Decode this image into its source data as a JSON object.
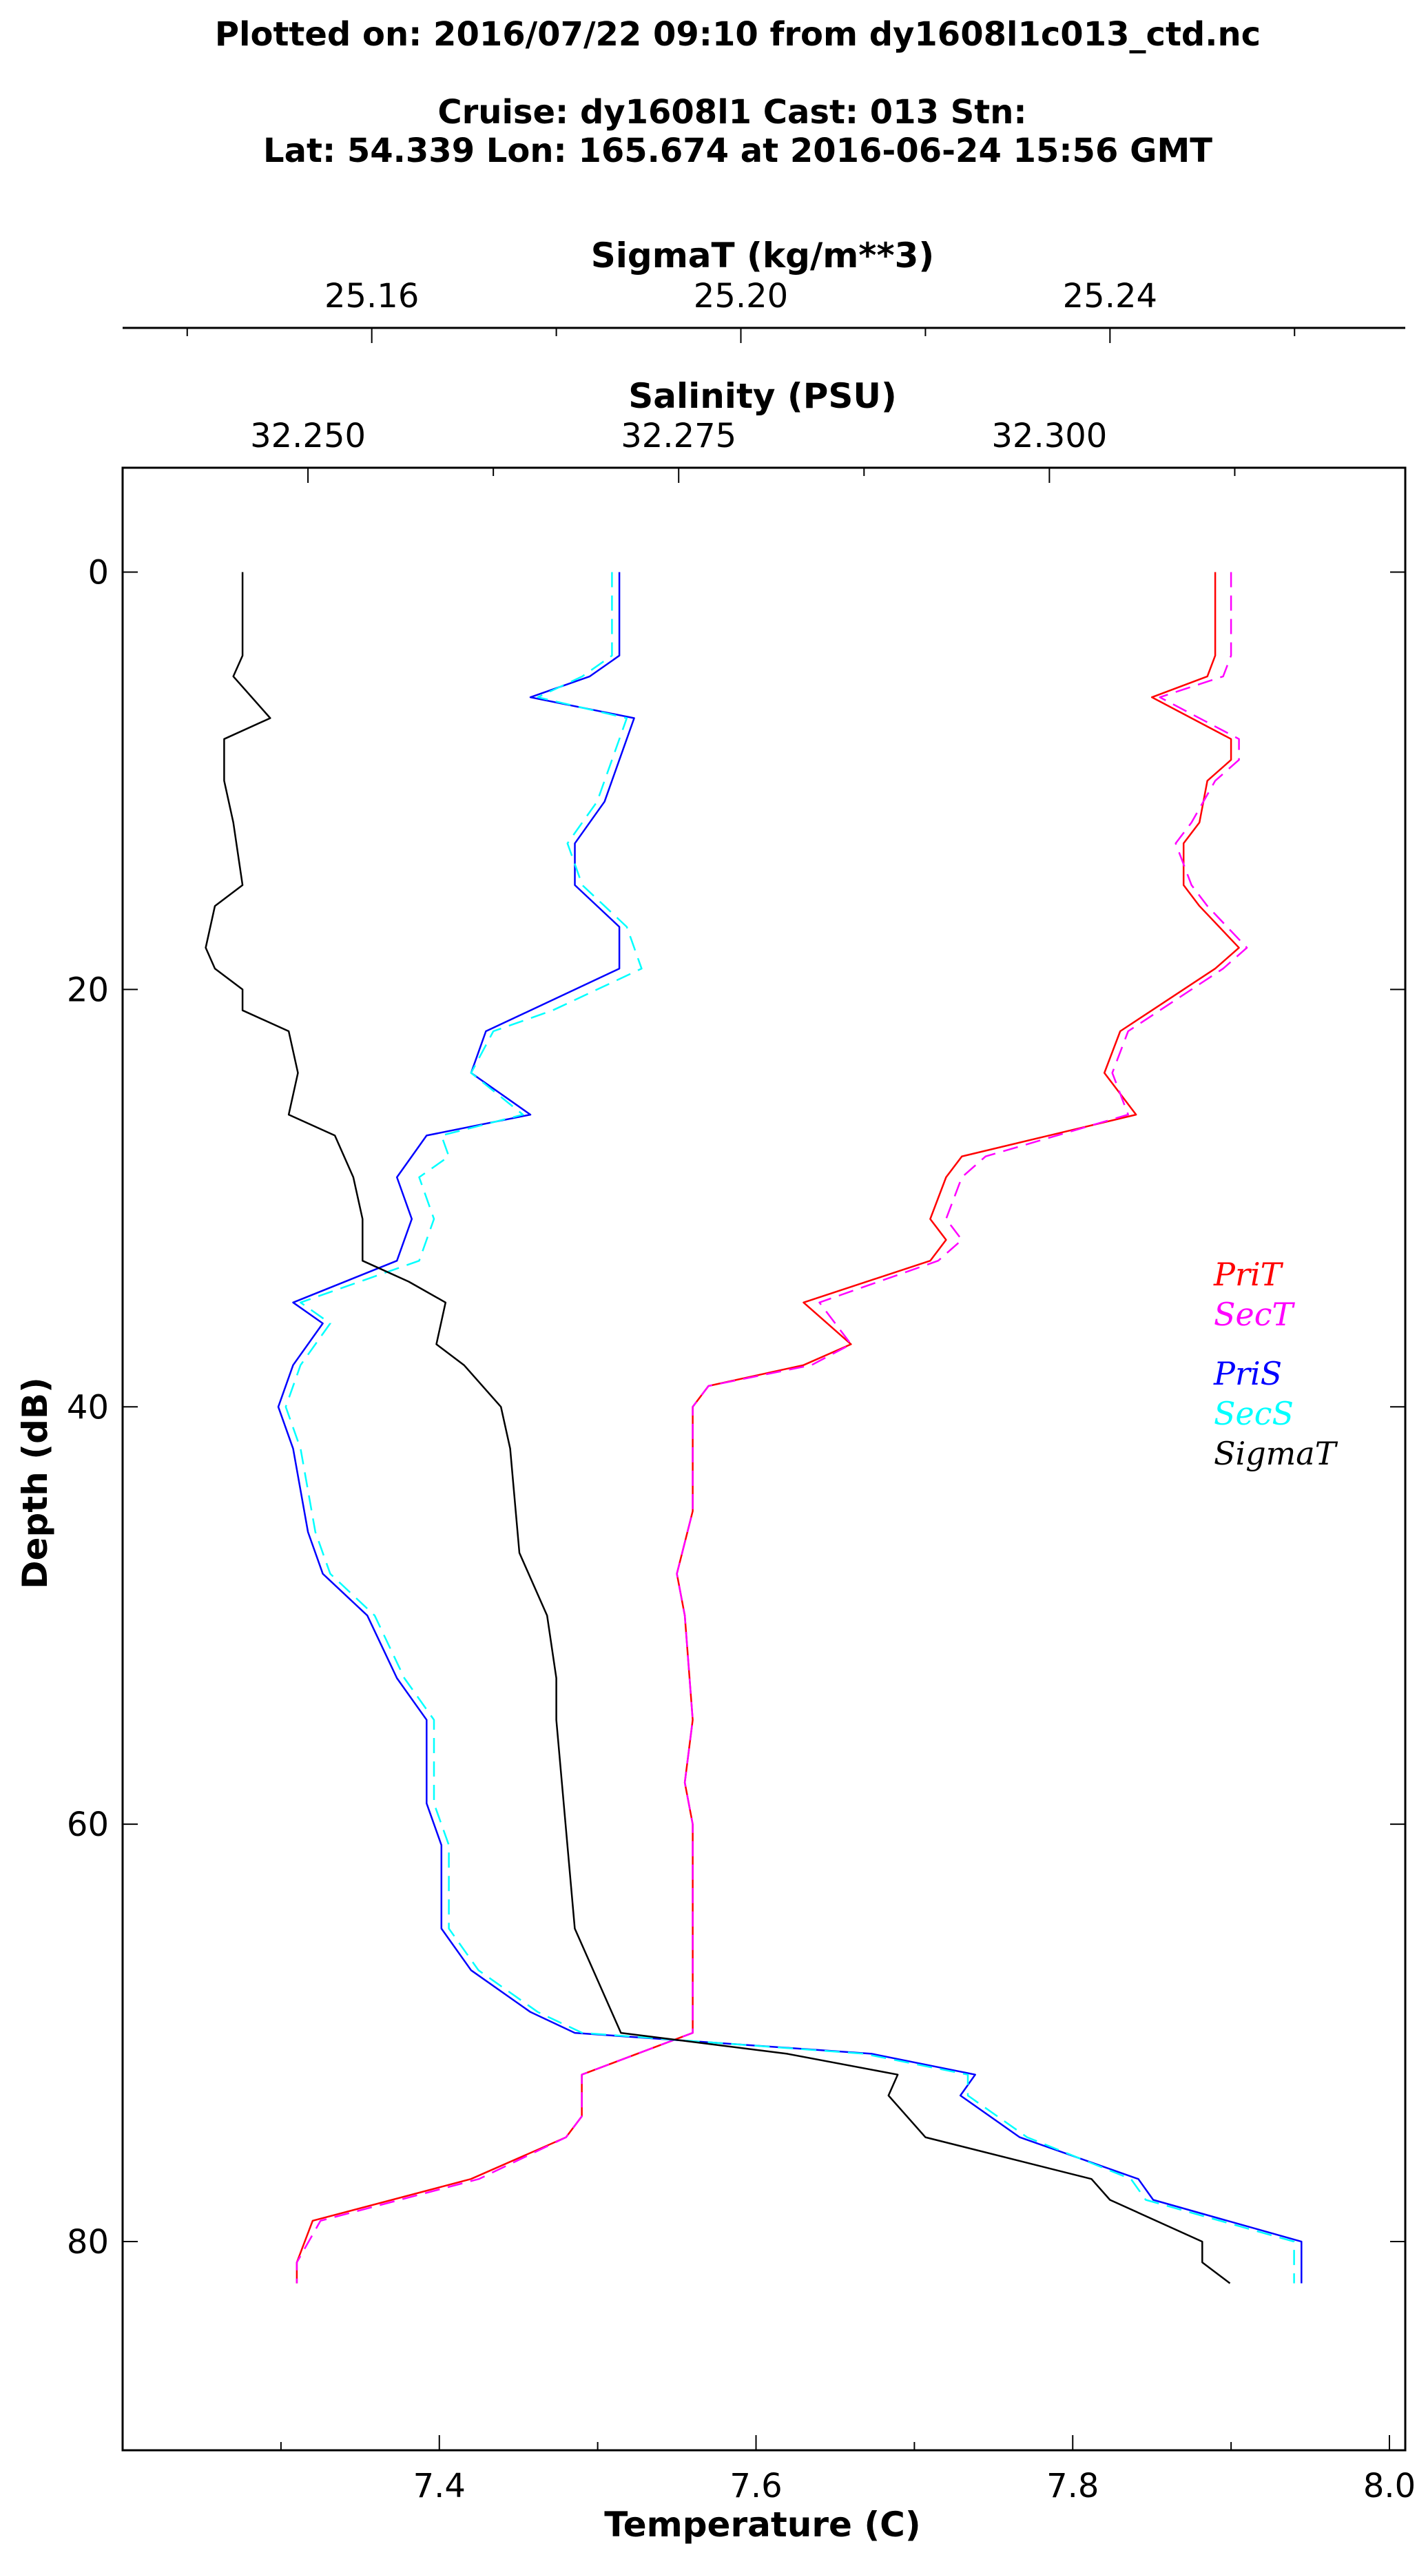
{
  "titles": {
    "line1": "Plotted on: 2016/07/22 09:10 from dy1608l1c013_ctd.nc",
    "line2": "Cruise: dy1608l1 Cast: 013  Stn:",
    "line3": "Lat: 54.339  Lon: 165.674 at 2016-06-24 15:56 GMT"
  },
  "chart_data": {
    "type": "line",
    "axes": {
      "sigmat": {
        "label": "SigmaT (kg/m**3)",
        "range": [
          25.133,
          25.272
        ],
        "ticks": [
          "25.16",
          "25.20",
          "25.24"
        ],
        "tick_values": [
          25.16,
          25.2,
          25.24
        ]
      },
      "salinity": {
        "label": "Salinity (PSU)",
        "range": [
          32.2375,
          32.324
        ],
        "ticks": [
          "32.250",
          "32.275",
          "32.300"
        ],
        "tick_values": [
          32.25,
          32.275,
          32.3
        ]
      },
      "temperature": {
        "label": "Temperature (C)",
        "range": [
          7.2,
          8.01
        ],
        "ticks": [
          "7.4",
          "7.6",
          "7.8",
          "8.0"
        ],
        "tick_values": [
          7.4,
          7.6,
          7.8,
          8.0
        ]
      },
      "depth": {
        "label": "Depth (dB)",
        "range": [
          -5,
          90
        ],
        "ticks": [
          "0",
          "20",
          "40",
          "60",
          "80"
        ],
        "tick_values": [
          0,
          20,
          40,
          60,
          80
        ],
        "inverted": true
      }
    },
    "legend": {
      "placement": "right",
      "temperature_entries": [
        "PriT",
        "SecT"
      ],
      "other_entries": [
        "PriS",
        "SecS",
        "SigmaT"
      ]
    },
    "colors": {
      "PriT": "#ff0000",
      "SecT": "#ff00ff",
      "PriS": "#0000ff",
      "SecS": "#00ffff",
      "SigmaT": "#000000"
    },
    "series": [
      {
        "name": "PriT",
        "axis": "temperature",
        "style": "solid",
        "color": "#ff0000",
        "depth": [
          0,
          4,
          5,
          6,
          8,
          9,
          10,
          12,
          13,
          15,
          16,
          18,
          19,
          21,
          22,
          24,
          26,
          28,
          29,
          31,
          32,
          33,
          35,
          37,
          38,
          39,
          40,
          45,
          48,
          50,
          55,
          58,
          60,
          65,
          70,
          72,
          74,
          75,
          77,
          79,
          81,
          82
        ],
        "values": [
          7.89,
          7.89,
          7.885,
          7.85,
          7.9,
          7.9,
          7.885,
          7.88,
          7.87,
          7.87,
          7.88,
          7.905,
          7.89,
          7.85,
          7.83,
          7.82,
          7.84,
          7.73,
          7.72,
          7.71,
          7.72,
          7.71,
          7.63,
          7.66,
          7.63,
          7.57,
          7.56,
          7.56,
          7.55,
          7.555,
          7.56,
          7.555,
          7.56,
          7.56,
          7.56,
          7.49,
          7.49,
          7.48,
          7.42,
          7.32,
          7.31,
          7.31
        ]
      },
      {
        "name": "SecT",
        "axis": "temperature",
        "style": "dashed",
        "color": "#ff00ff",
        "depth": [
          0,
          4,
          5,
          6,
          8,
          9,
          10,
          12,
          13,
          15,
          16,
          18,
          19,
          21,
          22,
          24,
          26,
          28,
          29,
          31,
          32,
          33,
          35,
          37,
          38,
          39,
          40,
          45,
          48,
          50,
          55,
          58,
          60,
          65,
          70,
          72,
          74,
          75,
          77,
          79,
          81,
          82
        ],
        "values": [
          7.9,
          7.9,
          7.895,
          7.855,
          7.905,
          7.905,
          7.89,
          7.875,
          7.865,
          7.875,
          7.885,
          7.91,
          7.895,
          7.855,
          7.835,
          7.825,
          7.835,
          7.745,
          7.73,
          7.72,
          7.73,
          7.715,
          7.64,
          7.66,
          7.635,
          7.57,
          7.56,
          7.56,
          7.55,
          7.555,
          7.56,
          7.555,
          7.56,
          7.56,
          7.56,
          7.49,
          7.49,
          7.48,
          7.425,
          7.325,
          7.31,
          7.31
        ]
      },
      {
        "name": "PriS",
        "axis": "salinity",
        "style": "solid",
        "color": "#0000ff",
        "depth": [
          0,
          4,
          5,
          6,
          7,
          9,
          11,
          13,
          15,
          17,
          19,
          21,
          22,
          24,
          26,
          27,
          29,
          31,
          33,
          35,
          36,
          38,
          40,
          42,
          46,
          48,
          50,
          53,
          55,
          59,
          61,
          65,
          67,
          69,
          70,
          71,
          72,
          73,
          75,
          77,
          78,
          80,
          81,
          82
        ],
        "values": [
          32.271,
          32.271,
          32.269,
          32.265,
          32.272,
          32.271,
          32.27,
          32.268,
          32.268,
          32.271,
          32.271,
          32.265,
          32.262,
          32.261,
          32.265,
          32.258,
          32.256,
          32.257,
          32.256,
          32.249,
          32.251,
          32.249,
          32.248,
          32.249,
          32.25,
          32.251,
          32.254,
          32.256,
          32.258,
          32.258,
          32.259,
          32.259,
          32.261,
          32.265,
          32.268,
          32.288,
          32.295,
          32.294,
          32.298,
          32.306,
          32.307,
          32.317,
          32.317,
          32.317
        ]
      },
      {
        "name": "SecS",
        "axis": "salinity",
        "style": "dashed",
        "color": "#00ffff",
        "depth": [
          0,
          4,
          5,
          6,
          7,
          9,
          11,
          13,
          15,
          17,
          19,
          21,
          22,
          24,
          26,
          27,
          28,
          29,
          31,
          33,
          35,
          36,
          38,
          40,
          42,
          46,
          48,
          50,
          53,
          55,
          59,
          61,
          65,
          67,
          69,
          70,
          71,
          72,
          73,
          75,
          77,
          78,
          80,
          81,
          82
        ],
        "values": [
          32.2705,
          32.2705,
          32.2685,
          32.2655,
          32.2715,
          32.2705,
          32.2695,
          32.2675,
          32.2685,
          32.2715,
          32.2725,
          32.2665,
          32.2625,
          32.261,
          32.2645,
          32.259,
          32.2595,
          32.2575,
          32.2585,
          32.2575,
          32.2495,
          32.2515,
          32.2495,
          32.2485,
          32.2495,
          32.2505,
          32.2515,
          32.2545,
          32.2565,
          32.2585,
          32.2585,
          32.2595,
          32.2595,
          32.2615,
          32.2655,
          32.2685,
          32.2875,
          32.2945,
          32.2945,
          32.2985,
          32.3055,
          32.3065,
          32.3165,
          32.3165,
          32.3165
        ]
      },
      {
        "name": "SigmaT",
        "axis": "sigmat",
        "style": "solid",
        "color": "#000000",
        "depth": [
          0,
          4,
          5,
          7,
          8,
          10,
          12,
          15,
          16,
          18,
          19,
          20,
          21,
          22,
          24,
          26,
          27,
          29,
          31,
          33,
          34,
          35,
          37,
          38,
          40,
          42,
          47,
          50,
          53,
          55,
          60,
          65,
          70,
          71,
          72,
          73,
          75,
          77,
          78,
          80,
          81,
          82
        ],
        "values": [
          25.146,
          25.146,
          25.145,
          25.149,
          25.144,
          25.144,
          25.145,
          25.146,
          25.143,
          25.142,
          25.143,
          25.146,
          25.146,
          25.151,
          25.152,
          25.151,
          25.156,
          25.158,
          25.159,
          25.159,
          25.164,
          25.168,
          25.167,
          25.17,
          25.174,
          25.175,
          25.176,
          25.179,
          25.18,
          25.18,
          25.181,
          25.182,
          25.187,
          25.205,
          25.217,
          25.216,
          25.22,
          25.238,
          25.24,
          25.25,
          25.25,
          25.253
        ]
      }
    ]
  }
}
